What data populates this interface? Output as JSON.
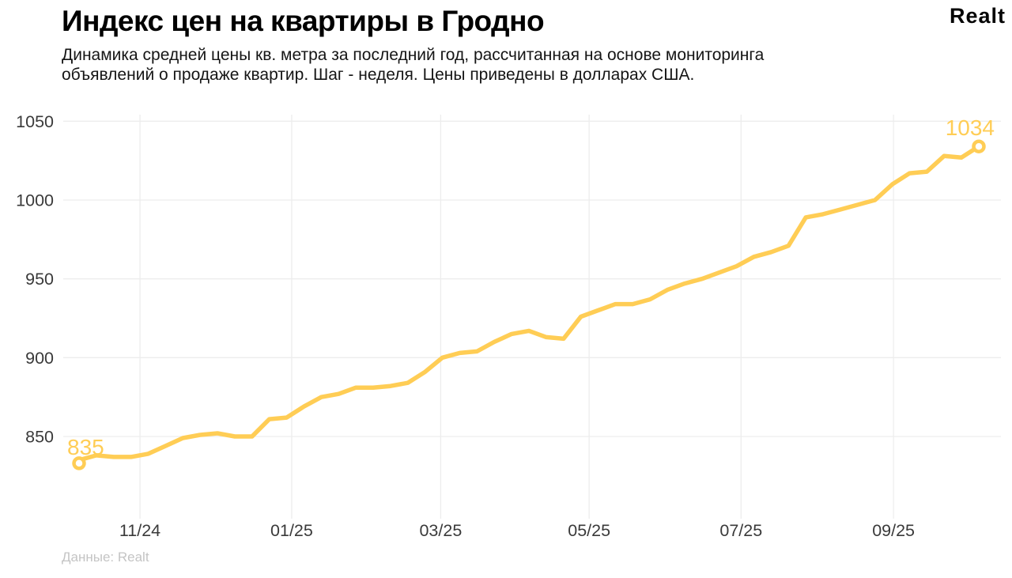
{
  "header": {
    "title": "Индекс цен на квартиры в Гродно",
    "subtitle_line1": "Динамика средней цены кв. метра за последний год, рассчитанная на основе мониторинга",
    "subtitle_line2": "объявлений о продаже квартир. Шаг - неделя. Цены приведены в долларах США.",
    "logo_text": "Realt"
  },
  "footer": {
    "source": "Данные: Realt"
  },
  "colors": {
    "line": "#FFCD55",
    "grid": "#EDEDED",
    "tick_text": "#3a3a3a",
    "title_text": "#000000",
    "footer_text": "#c4c4c4",
    "background": "#FFFFFF",
    "marker_fill": "#FFFFFF"
  },
  "chart_data": {
    "type": "line",
    "title": "Индекс цен на квартиры в Гродно",
    "xlabel": "",
    "ylabel": "",
    "grid": true,
    "legend": "none",
    "y_ticks": [
      850,
      900,
      950,
      1000,
      1050
    ],
    "ylim": [
      818,
      1062
    ],
    "x_tick_labels": [
      "11/24",
      "01/25",
      "03/25",
      "05/25",
      "07/25",
      "09/25"
    ],
    "x_tick_weeks": [
      3.52,
      12.29,
      20.9,
      29.48,
      38.26,
      47.07
    ],
    "start_label": "835",
    "end_label": "1034",
    "start_value": 835,
    "end_value": 1034,
    "values": [
      835,
      838,
      837,
      837,
      839,
      844,
      849,
      851,
      852,
      850,
      850,
      861,
      862,
      869,
      875,
      877,
      881,
      881,
      882,
      884,
      891,
      900,
      903,
      904,
      910,
      915,
      917,
      913,
      912,
      926,
      930,
      934,
      934,
      937,
      943,
      947,
      950,
      954,
      958,
      964,
      967,
      971,
      989,
      991,
      994,
      997,
      1000,
      1010,
      1017,
      1018,
      1028,
      1027,
      1034
    ]
  }
}
